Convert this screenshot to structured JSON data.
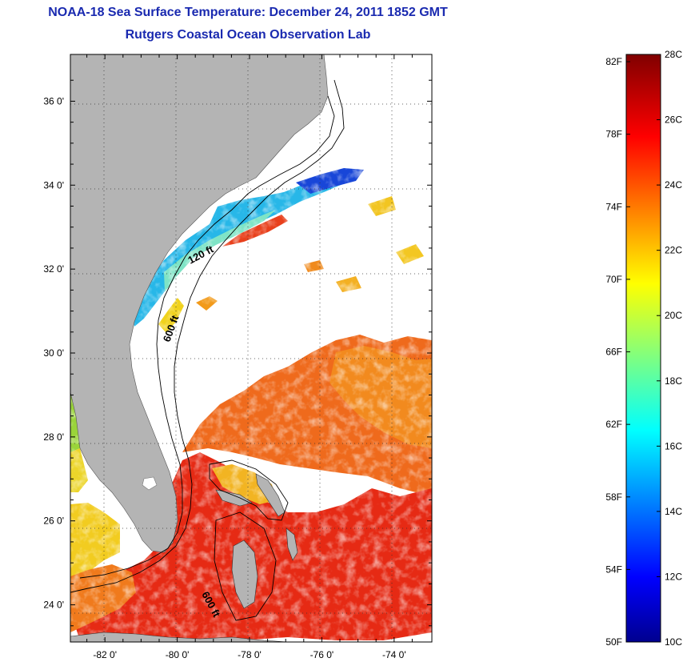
{
  "title": {
    "line1": "NOAA-18 Sea Surface Temperature:  December 24, 2011 1852 GMT",
    "line2": "Rutgers Coastal Ocean Observation Lab"
  },
  "map": {
    "lon_range": [
      -83,
      -73
    ],
    "lat_range": [
      23,
      37
    ],
    "x_ticks": [
      {
        "value": -82,
        "label": "-82 0'"
      },
      {
        "value": -80,
        "label": "-80 0'"
      },
      {
        "value": -78,
        "label": "-78 0'"
      },
      {
        "value": -76,
        "label": "-76 0'"
      },
      {
        "value": -74,
        "label": "-74 0'"
      }
    ],
    "y_ticks": [
      {
        "value": 36,
        "label": "36 0'"
      },
      {
        "value": 34,
        "label": "34 0'"
      },
      {
        "value": 32,
        "label": "32 0'"
      },
      {
        "value": 30,
        "label": "30 0'"
      },
      {
        "value": 28,
        "label": "28 0'"
      },
      {
        "value": 26,
        "label": "26 0'"
      },
      {
        "value": 24,
        "label": "24 0'"
      }
    ],
    "contour_labels": [
      {
        "text": "120 ft"
      },
      {
        "text": "600 ft"
      },
      {
        "text": "600 ft"
      }
    ],
    "grid": "dotted",
    "land_color": "#b4b4b4"
  },
  "colorbar": {
    "celsius_range": [
      10,
      28
    ],
    "celsius_labels": [
      "28C",
      "26C",
      "24C",
      "22C",
      "20C",
      "18C",
      "16C",
      "14C",
      "12C",
      "10C"
    ],
    "fahrenheit_labels": [
      "82F",
      "78F",
      "74F",
      "70F",
      "66F",
      "62F",
      "58F",
      "54F",
      "50F"
    ],
    "colormap": "jet"
  }
}
